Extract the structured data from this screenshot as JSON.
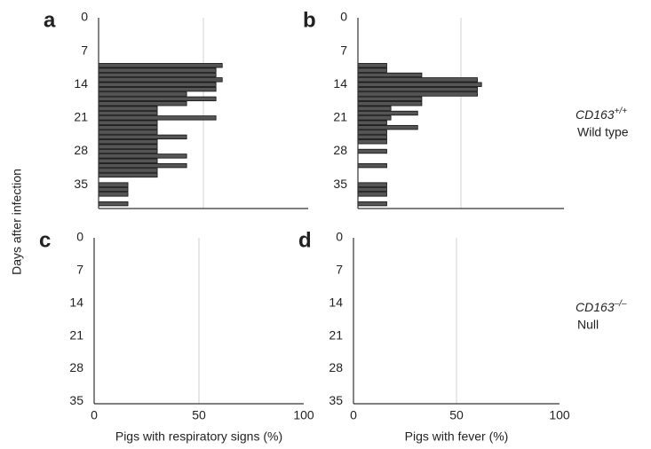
{
  "y_label": "Days after infection",
  "row_labels": [
    {
      "gene": "CD163",
      "sup": "+/+",
      "name": "Wild type"
    },
    {
      "gene": "CD163",
      "sup": "–/–",
      "name": "Null"
    }
  ],
  "chart_data": [
    {
      "type": "bar",
      "orientation": "horizontal",
      "label": "a",
      "color": "#555555",
      "y": [
        10,
        11,
        12,
        13,
        14,
        15,
        16,
        17,
        18,
        19,
        20,
        21,
        22,
        23,
        24,
        25,
        26,
        27,
        28,
        29,
        30,
        31,
        32,
        33,
        34,
        35,
        36,
        37,
        38,
        39
      ],
      "values": [
        59,
        56,
        56,
        59,
        56,
        56,
        42,
        56,
        42,
        28,
        28,
        56,
        28,
        28,
        28,
        42,
        28,
        28,
        28,
        42,
        28,
        42,
        28,
        28,
        null,
        14,
        14,
        14,
        null,
        14
      ],
      "xlim": [
        0,
        100
      ],
      "gridlines": [
        50
      ],
      "ylim": [
        0,
        40
      ],
      "yticks": [
        0,
        7,
        14,
        21,
        28,
        35
      ]
    },
    {
      "type": "bar",
      "orientation": "horizontal",
      "label": "b",
      "color": "#555555",
      "y": [
        10,
        11,
        12,
        13,
        14,
        15,
        16,
        17,
        18,
        19,
        20,
        21,
        22,
        23,
        24,
        25,
        26,
        27,
        28,
        29,
        30,
        31,
        32,
        33,
        34,
        35,
        36,
        37,
        38,
        39
      ],
      "values": [
        14,
        14,
        31,
        58,
        60,
        58,
        58,
        31,
        31,
        16,
        29,
        16,
        14,
        29,
        14,
        14,
        14,
        null,
        14,
        null,
        null,
        14,
        null,
        null,
        null,
        14,
        14,
        14,
        null,
        14
      ],
      "xlim": [
        0,
        100
      ],
      "gridlines": [
        50
      ],
      "ylim": [
        0,
        40
      ],
      "yticks": [
        0,
        7,
        14,
        21,
        28,
        35
      ]
    },
    {
      "type": "bar",
      "orientation": "horizontal",
      "label": "c",
      "color": "#555555",
      "y": [],
      "values": [],
      "xlim": [
        0,
        100
      ],
      "xticks": [
        0,
        50,
        100
      ],
      "gridlines": [
        50
      ],
      "x_label": "Pigs with respiratory signs (%)",
      "ylim": [
        0,
        35.5
      ],
      "yticks": [
        0,
        7,
        14,
        21,
        28,
        35
      ]
    },
    {
      "type": "bar",
      "orientation": "horizontal",
      "label": "d",
      "color": "#555555",
      "y": [],
      "values": [],
      "xlim": [
        0,
        100
      ],
      "xticks": [
        0,
        50,
        100
      ],
      "gridlines": [
        50
      ],
      "x_label": "Pigs with fever (%)",
      "ylim": [
        0,
        35.5
      ],
      "yticks": [
        0,
        7,
        14,
        21,
        28,
        35
      ]
    }
  ]
}
